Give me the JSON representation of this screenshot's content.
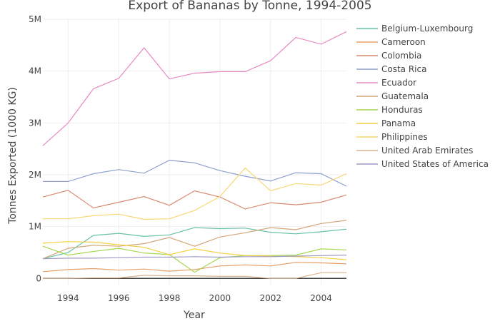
{
  "chart_data": {
    "type": "line",
    "title": "Export of Bananas by Tonne, 1994-2005",
    "xlabel": "Year",
    "ylabel": "Tonnes Exported (1000 KG)",
    "x": [
      1993,
      1994,
      1995,
      1996,
      1997,
      1998,
      1999,
      2000,
      2001,
      2002,
      2003,
      2004,
      2005
    ],
    "xlim": [
      1993,
      2005
    ],
    "ylim": [
      -120000,
      5000000
    ],
    "x_ticks": [
      1994,
      1996,
      1998,
      2000,
      2002,
      2004
    ],
    "x_tick_labels": [
      "1994",
      "1996",
      "1998",
      "2000",
      "2002",
      "2004"
    ],
    "y_ticks": [
      0,
      1000000,
      2000000,
      3000000,
      4000000,
      5000000
    ],
    "y_tick_labels": [
      "0",
      "1M",
      "2M",
      "3M",
      "4M",
      "5M"
    ],
    "grid": true,
    "legend_position": "right",
    "series": [
      {
        "name": "Belgium-Luxembourg",
        "color": "#66c2a5",
        "values": [
          380000,
          500000,
          830000,
          870000,
          810000,
          840000,
          980000,
          960000,
          970000,
          890000,
          860000,
          900000,
          950000
        ]
      },
      {
        "name": "Cameroon",
        "color": "#e5a06a",
        "values": [
          130000,
          170000,
          190000,
          160000,
          180000,
          140000,
          170000,
          240000,
          260000,
          240000,
          310000,
          300000,
          280000
        ]
      },
      {
        "name": "Colombia",
        "color": "#d98b72",
        "values": [
          1570000,
          1700000,
          1360000,
          1470000,
          1580000,
          1410000,
          1690000,
          1570000,
          1340000,
          1460000,
          1420000,
          1470000,
          1610000
        ]
      },
      {
        "name": "Costa Rica",
        "color": "#8da0cb",
        "values": [
          1870000,
          1870000,
          2020000,
          2100000,
          2030000,
          2280000,
          2230000,
          2080000,
          1970000,
          1880000,
          2040000,
          2020000,
          1780000
        ]
      },
      {
        "name": "Ecuador",
        "color": "#e78ac3",
        "values": [
          2560000,
          3000000,
          3660000,
          3860000,
          4450000,
          3850000,
          3960000,
          3990000,
          3990000,
          4200000,
          4650000,
          4520000,
          4760000
        ]
      },
      {
        "name": "Guatemala",
        "color": "#d2a679",
        "values": [
          380000,
          580000,
          640000,
          620000,
          670000,
          790000,
          620000,
          800000,
          880000,
          980000,
          940000,
          1060000,
          1120000
        ]
      },
      {
        "name": "Honduras",
        "color": "#a6d854",
        "values": [
          620000,
          450000,
          520000,
          580000,
          490000,
          460000,
          120000,
          400000,
          440000,
          440000,
          450000,
          570000,
          550000
        ]
      },
      {
        "name": "Panama",
        "color": "#f4d03f",
        "values": [
          680000,
          710000,
          700000,
          650000,
          600000,
          460000,
          570000,
          490000,
          440000,
          430000,
          420000,
          400000,
          360000
        ]
      },
      {
        "name": "Philippines",
        "color": "#f7d774",
        "values": [
          1150000,
          1150000,
          1210000,
          1240000,
          1140000,
          1150000,
          1310000,
          1580000,
          2130000,
          1690000,
          1830000,
          1800000,
          2020000
        ]
      },
      {
        "name": "United Arab Emirates",
        "color": "#d9b48f",
        "values": [
          0,
          0,
          10000,
          10000,
          60000,
          50000,
          50000,
          40000,
          40000,
          0,
          0,
          110000,
          110000
        ]
      },
      {
        "name": "United States of America",
        "color": "#9e9ac8",
        "values": [
          380000,
          390000,
          390000,
          400000,
          410000,
          410000,
          420000,
          410000,
          420000,
          420000,
          430000,
          440000,
          450000
        ]
      }
    ]
  }
}
